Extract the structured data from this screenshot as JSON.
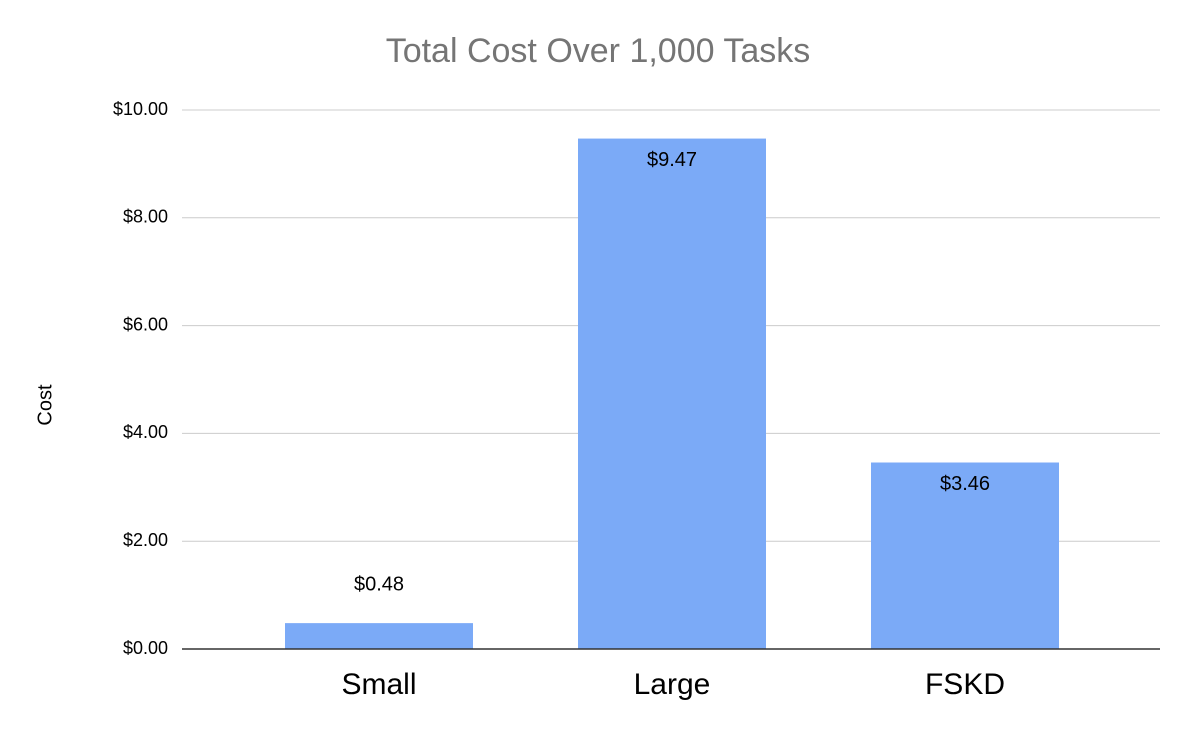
{
  "chart_data": {
    "type": "bar",
    "title": "Total Cost Over 1,000 Tasks",
    "y_label": "Cost",
    "categories": [
      "Small",
      "Large",
      "FSKD"
    ],
    "values": [
      0.48,
      9.47,
      3.46
    ],
    "value_labels": [
      "$0.48",
      "$9.47",
      "$3.46"
    ],
    "color": "#7baaf7",
    "ylim": [
      0,
      10
    ],
    "yticks": [
      {
        "value": 0,
        "label": "$0.00"
      },
      {
        "value": 2,
        "label": "$2.00"
      },
      {
        "value": 4,
        "label": "$4.00"
      },
      {
        "value": 6,
        "label": "$6.00"
      },
      {
        "value": 8,
        "label": "$8.00"
      },
      {
        "value": 10,
        "label": "$10.00"
      }
    ],
    "grid": true
  }
}
